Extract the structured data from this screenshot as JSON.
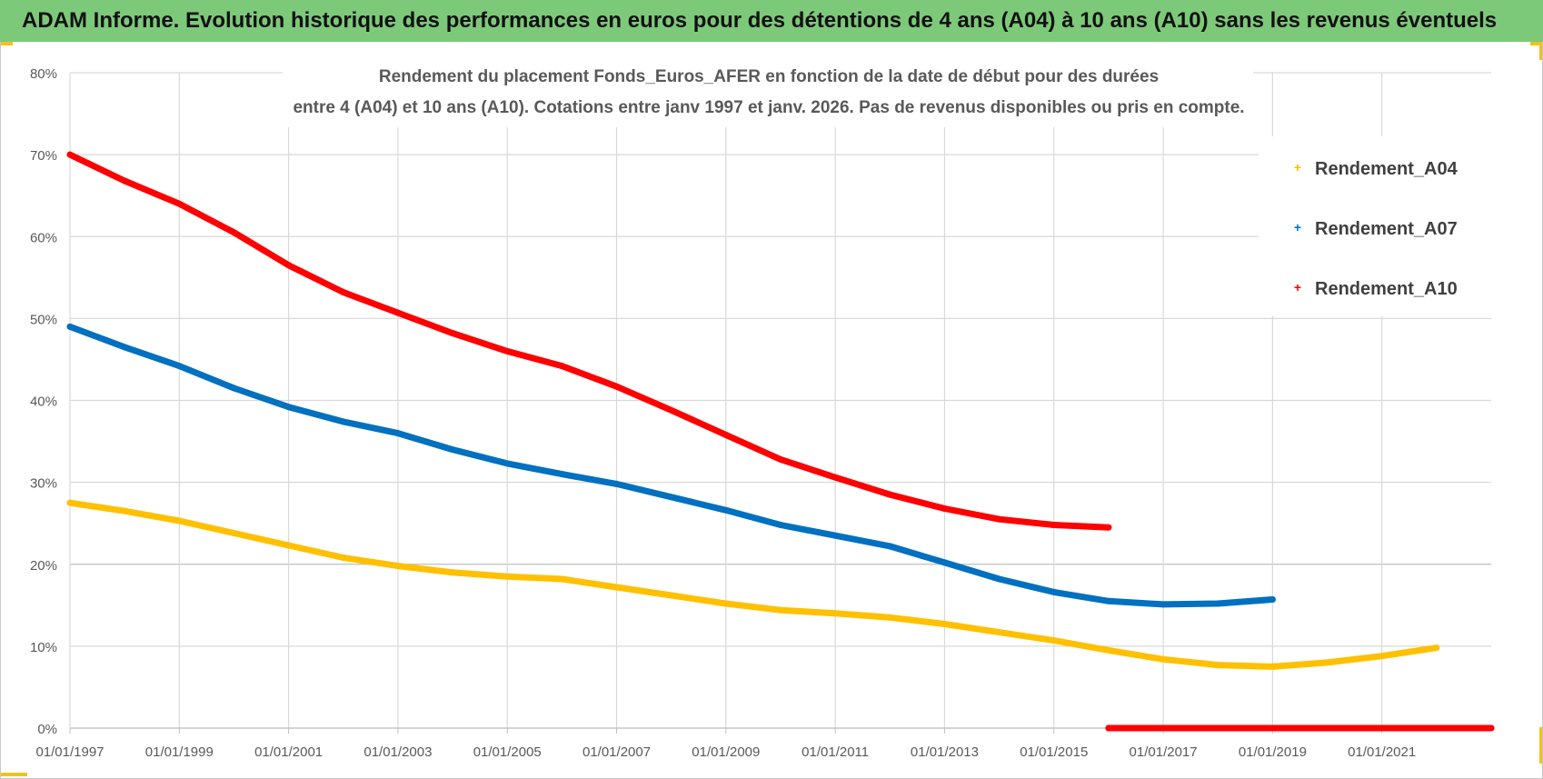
{
  "banner": {
    "title": "ADAM Informe. Evolution historique des performances en euros pour des détentions de 4 ans (A04) à 10 ans (A10) sans les revenus éventuels"
  },
  "colors": {
    "banner_bg": "#7dc97a",
    "accent_corner": "#f2c21a",
    "grid": "#d9d9d9",
    "axis_text": "#595959",
    "title_text": "#595959",
    "legend_text": "#404040"
  },
  "chart_data": {
    "type": "scatter",
    "title_lines": [
      "Rendement du placement Fonds_Euros_AFER en fonction de la date de début pour des durées",
      "entre 4 (A04) et 10 ans (A10).  Cotations entre janv 1997 et janv. 2026. Pas de revenus disponibles ou pris en compte."
    ],
    "xlabel": "",
    "ylabel": "",
    "x_unit": "year",
    "xlim": [
      1997,
      2023.0
    ],
    "ylim": [
      0,
      80
    ],
    "y_ticks": [
      0,
      10,
      20,
      30,
      40,
      50,
      60,
      70,
      80
    ],
    "y_tick_labels": [
      "0%",
      "10%",
      "20%",
      "30%",
      "40%",
      "50%",
      "60%",
      "70%",
      "80%"
    ],
    "x_ticks": [
      1997,
      1999,
      2001,
      2003,
      2005,
      2007,
      2009,
      2011,
      2013,
      2015,
      2017,
      2019,
      2021
    ],
    "x_tick_labels": [
      "01/01/1997",
      "01/01/1999",
      "01/01/2001",
      "01/01/2003",
      "01/01/2005",
      "01/01/2007",
      "01/01/2009",
      "01/01/2011",
      "01/01/2013",
      "01/01/2015",
      "01/01/2017",
      "01/01/2019",
      "01/01/2021"
    ],
    "grid": true,
    "legend_position": "top-right",
    "series": [
      {
        "name": "Rendement_A04",
        "color": "#ffc000",
        "x": [
          1997,
          1998,
          1999,
          2000,
          2001,
          2002,
          2003,
          2004,
          2005,
          2006,
          2007,
          2008,
          2009,
          2010,
          2011,
          2012,
          2013,
          2014,
          2015,
          2016,
          2017,
          2018,
          2019,
          2020,
          2021,
          2022
        ],
        "y": [
          27.5,
          26.5,
          25.3,
          23.8,
          22.3,
          20.8,
          19.8,
          19.0,
          18.5,
          18.2,
          17.2,
          16.2,
          15.2,
          14.4,
          14.0,
          13.5,
          12.7,
          11.7,
          10.7,
          9.5,
          8.4,
          7.7,
          7.5,
          8.0,
          8.8,
          9.8
        ]
      },
      {
        "name": "Rendement_A07",
        "color": "#0070c0",
        "x": [
          1997,
          1998,
          1999,
          2000,
          2001,
          2002,
          2003,
          2004,
          2005,
          2006,
          2007,
          2008,
          2009,
          2010,
          2011,
          2012,
          2013,
          2014,
          2015,
          2016,
          2017,
          2018,
          2019
        ],
        "y": [
          49.0,
          46.5,
          44.2,
          41.5,
          39.2,
          37.4,
          36.0,
          34.0,
          32.3,
          31.0,
          29.8,
          28.2,
          26.6,
          24.8,
          23.5,
          22.2,
          20.2,
          18.2,
          16.6,
          15.5,
          15.1,
          15.2,
          15.7
        ]
      },
      {
        "name": "Rendement_A10",
        "color": "#ff0000",
        "x": [
          1997,
          1998,
          1999,
          2000,
          2001,
          2002,
          2003,
          2004,
          2005,
          2006,
          2007,
          2008,
          2009,
          2010,
          2011,
          2012,
          2013,
          2014,
          2015,
          2016
        ],
        "y": [
          70.0,
          66.8,
          64.0,
          60.5,
          56.5,
          53.2,
          50.7,
          48.2,
          46.0,
          44.2,
          41.7,
          38.8,
          35.8,
          32.8,
          30.6,
          28.5,
          26.8,
          25.5,
          24.8,
          24.5
        ]
      },
      {
        "name": "Rendement_A10",
        "color": "#ff0000",
        "legend": false,
        "x": [
          2016,
          2017,
          2018,
          2019,
          2020,
          2021,
          2022,
          2023
        ],
        "y": [
          0,
          0,
          0,
          0,
          0,
          0,
          0,
          0
        ]
      }
    ]
  }
}
